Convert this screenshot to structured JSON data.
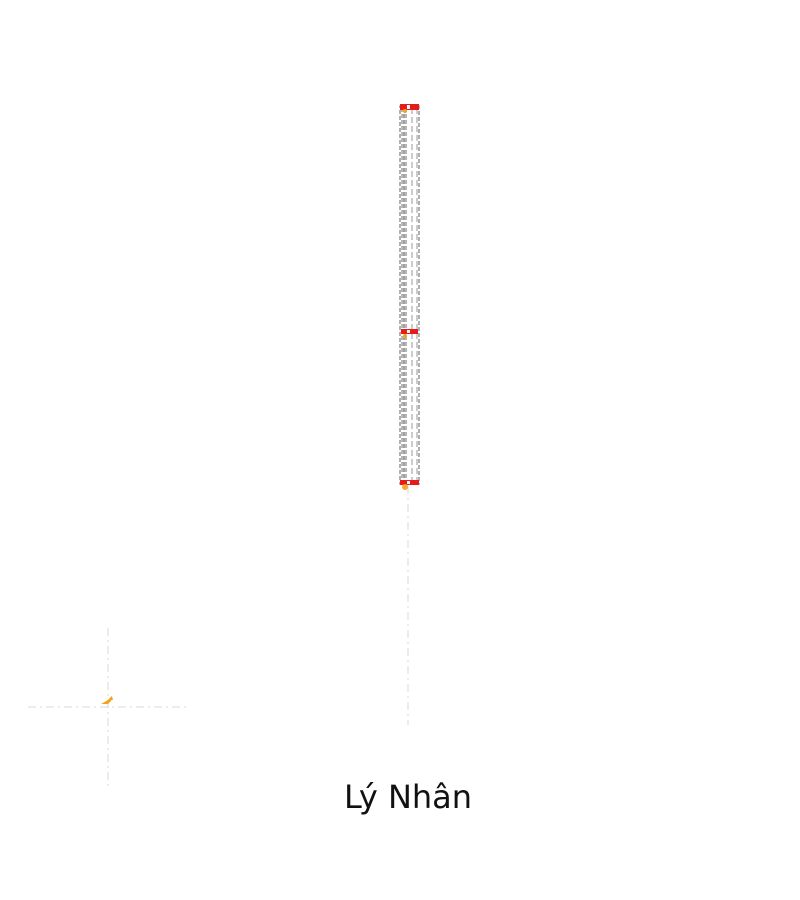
{
  "label": "Lý Nhân",
  "colors": {
    "background": "#ffffff",
    "guide": "#d8d8d8",
    "structure_outline": "#8c8c8c",
    "structure_fill": "#cfcfcf",
    "cap": "#e81b1b",
    "origin_marker": "#f0a41a",
    "text": "#111111"
  },
  "icons": {
    "origin_marker": "arrow-icon"
  }
}
